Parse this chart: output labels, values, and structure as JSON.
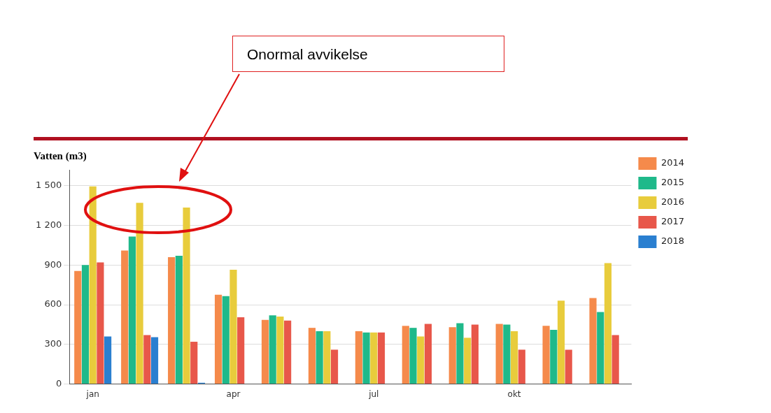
{
  "chart_data": {
    "type": "bar",
    "title": "Vatten (m3)",
    "categories": [
      "jan",
      null,
      null,
      "apr",
      null,
      null,
      "jul",
      null,
      null,
      "okt",
      null,
      null
    ],
    "series": [
      {
        "name": "2014",
        "color": "#f58a4b",
        "values": [
          855,
          1010,
          960,
          675,
          485,
          425,
          400,
          440,
          430,
          455,
          440,
          650
        ]
      },
      {
        "name": "2015",
        "color": "#1fb98a",
        "values": [
          900,
          1115,
          970,
          665,
          520,
          400,
          390,
          425,
          460,
          450,
          410,
          545
        ]
      },
      {
        "name": "2016",
        "color": "#e8cc3c",
        "values": [
          1495,
          1370,
          1335,
          865,
          510,
          400,
          390,
          360,
          350,
          400,
          630,
          915
        ]
      },
      {
        "name": "2017",
        "color": "#e8574a",
        "values": [
          920,
          370,
          320,
          505,
          480,
          260,
          390,
          455,
          450,
          260,
          260,
          370
        ]
      },
      {
        "name": "2018",
        "color": "#2a7fd0",
        "values": [
          360,
          355,
          10,
          null,
          null,
          null,
          null,
          null,
          null,
          null,
          null,
          null
        ]
      }
    ],
    "ylim": [
      0,
      1620
    ],
    "yticks": [
      0,
      300,
      600,
      900,
      {
        "value": 1200,
        "label": "1 200"
      },
      {
        "value": 1500,
        "label": "1 500"
      }
    ],
    "grid": "y",
    "legend": "top right",
    "annotations": [
      "Onormal avvikelse"
    ]
  }
}
